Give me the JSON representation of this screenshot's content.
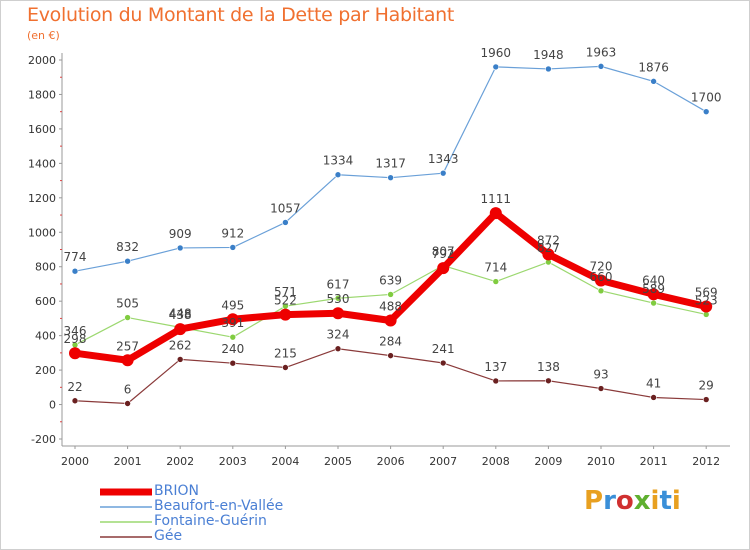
{
  "header": {
    "title": "Evolution du Montant de la Dette par Habitant",
    "subtitle": "(en €)"
  },
  "brand": {
    "text": "Proxiti",
    "colors": [
      "#e8a020",
      "#3a8fd8",
      "#d03030",
      "#5fb030",
      "#e8a020",
      "#3a8fd8",
      "#e8a020"
    ]
  },
  "chart_data": {
    "type": "line",
    "x": [
      "2000",
      "2001",
      "2002",
      "2003",
      "2004",
      "2005",
      "2006",
      "2007",
      "2008",
      "2009",
      "2010",
      "2011",
      "2012"
    ],
    "ylim": [
      -200,
      2000
    ],
    "yticks": [
      -200,
      0,
      200,
      400,
      600,
      800,
      1000,
      1200,
      1400,
      1600,
      1800,
      2000
    ],
    "grid": false,
    "legend": "bottom-left",
    "series": [
      {
        "name": "Beaufort-en-Vallée",
        "color": "#6aa0d8",
        "point_color": "#3a7fc8",
        "width": 1.2,
        "r": 3,
        "values": [
          774,
          832,
          909,
          912,
          1057,
          1334,
          1317,
          1343,
          1960,
          1948,
          1963,
          1876,
          1700
        ],
        "labels": [
          "774",
          "832",
          "909",
          "912",
          "1057",
          "1334",
          "1317",
          "1343",
          "1960",
          "1948",
          "1963",
          "1876",
          "1700"
        ]
      },
      {
        "name": "Fontaine-Guérin",
        "color": "#9cd870",
        "point_color": "#80cc40",
        "width": 1.2,
        "r": 3,
        "values": [
          346,
          505,
          448,
          391,
          571,
          617,
          639,
          807,
          714,
          827,
          660,
          589,
          523
        ],
        "labels": [
          "346",
          "505",
          "448",
          "391",
          "571",
          "617",
          "639",
          "807",
          "714",
          "827",
          "660",
          "589",
          "523"
        ]
      },
      {
        "name": "Gée",
        "color": "#8a3a3a",
        "point_color": "#6a2020",
        "width": 1.2,
        "r": 3,
        "values": [
          22,
          6,
          262,
          240,
          215,
          324,
          284,
          241,
          137,
          138,
          93,
          41,
          29
        ],
        "labels": [
          "22",
          "6",
          "262",
          "240",
          "215",
          "324",
          "284",
          "241",
          "137",
          "138",
          "93",
          "41",
          "29"
        ]
      },
      {
        "name": "BRION",
        "color": "#ee0000",
        "point_color": "#ee0000",
        "width": 7,
        "r": 6,
        "values": [
          298,
          257,
          438,
          495,
          522,
          530,
          488,
          792,
          1111,
          872,
          720,
          640,
          569
        ],
        "labels": [
          "298",
          "257",
          "438",
          "495",
          "522",
          "530",
          "488",
          "792",
          "1111",
          "872",
          "720",
          "640",
          "569"
        ]
      }
    ]
  },
  "legend_items": [
    {
      "name": "BRION",
      "color": "#ee0000",
      "width": 7
    },
    {
      "name": "Beaufort-en-Vallée",
      "color": "#6aa0d8",
      "width": 1.5
    },
    {
      "name": "Fontaine-Guérin",
      "color": "#9cd870",
      "width": 1.5
    },
    {
      "name": "Gée",
      "color": "#8a3a3a",
      "width": 1.5
    }
  ]
}
